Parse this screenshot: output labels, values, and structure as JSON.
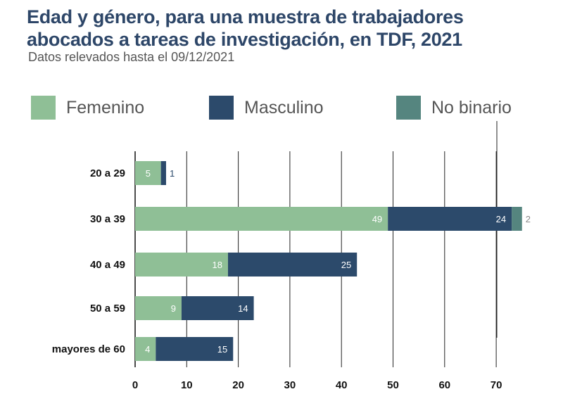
{
  "title": "Edad y género, para una muestra de trabajadores abocados a tareas de investigación, en TDF, 2021",
  "subtitle": "Datos relevados hasta el 09/12/2021",
  "colors": {
    "femenino": "#8fbf96",
    "masculino": "#2c4a6b",
    "no_binario": "#55857f",
    "label_light": "#ffffff",
    "label_outside_blue": "#2c4a6b",
    "label_outside_grey": "#888888",
    "grid": "#222222"
  },
  "legend": [
    {
      "label": "Femenino",
      "color": "#8fbf96"
    },
    {
      "label": "Masculino",
      "color": "#2c4a6b"
    },
    {
      "label": "No binario",
      "color": "#55857f"
    }
  ],
  "chart_data": {
    "type": "bar",
    "orientation": "horizontal",
    "stacked": true,
    "categories": [
      "20 a 29",
      "30 a 39",
      "40 a 49",
      "50 a 59",
      "mayores de 60"
    ],
    "series": [
      {
        "name": "Femenino",
        "values": [
          5,
          49,
          18,
          9,
          4
        ]
      },
      {
        "name": "Masculino",
        "values": [
          1,
          24,
          25,
          14,
          15
        ]
      },
      {
        "name": "No binario",
        "values": [
          0,
          2,
          0,
          0,
          0
        ]
      }
    ],
    "xlim": [
      0,
      73
    ],
    "xticks": [
      0,
      10,
      20,
      30,
      40,
      50,
      60,
      70
    ],
    "grid": true,
    "legend_position": "top"
  }
}
